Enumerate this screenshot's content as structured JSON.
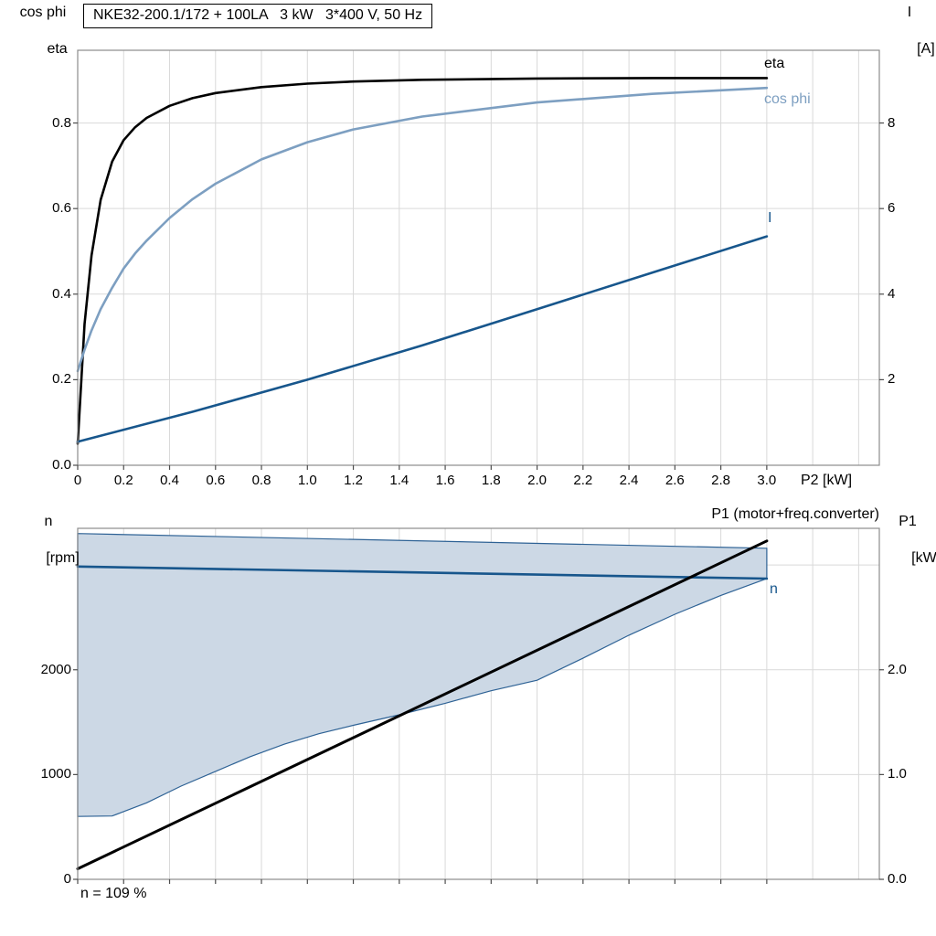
{
  "page": {
    "background": "#ffffff"
  },
  "colors": {
    "eta": "#000000",
    "cos_phi": "#7d9fc1",
    "current": "#17568c",
    "speed": "#17568c",
    "p1": "#000000",
    "area_fill": "#ccd8e5",
    "area_stroke": "#2e6295",
    "grid": "#d9d9d9",
    "frame": "#8c8c8c"
  },
  "top_chart": {
    "title": "NKE32-200.1/172 + 100LA   3 kW   3*400 V, 50 Hz",
    "left_axis": {
      "line1": "cos phi",
      "line2": "eta",
      "ticks": [
        "0.0",
        "0.2",
        "0.4",
        "0.6",
        "0.8"
      ]
    },
    "right_axis": {
      "line1": "I",
      "line2": "[A]",
      "ticks": [
        "2",
        "4",
        "6",
        "8"
      ]
    },
    "x_axis": {
      "ticks": [
        "0",
        "0.2",
        "0.4",
        "0.6",
        "0.8",
        "1.0",
        "1.2",
        "1.4",
        "1.6",
        "1.8",
        "2.0",
        "2.2",
        "2.4",
        "2.6",
        "2.8",
        "3.0"
      ],
      "label": "P2 [kW]"
    },
    "curve_labels": {
      "eta": "eta",
      "cos_phi": "cos phi",
      "current": "I"
    }
  },
  "bottom_chart": {
    "left_axis": {
      "line1": "n",
      "line2": "[rpm]",
      "ticks": [
        "0",
        "1000",
        "2000"
      ]
    },
    "right_axis": {
      "line1": "P1",
      "line2": "[kW]",
      "ticks": [
        "0.0",
        "1.0",
        "2.0"
      ]
    },
    "labels": {
      "p1": "P1 (motor+freq.converter)",
      "n": "n",
      "footer": "n = 109 %"
    }
  },
  "chart_data": [
    {
      "type": "line",
      "title": "NKE32-200.1/172 + 100LA   3 kW   3*400 V, 50 Hz",
      "xlabel": "P2 [kW]",
      "xlim": [
        0,
        3.49
      ],
      "ylim_left": [
        0,
        0.97
      ],
      "ylim_right": [
        0,
        9.7
      ],
      "xticks": [
        0,
        0.2,
        0.4,
        0.6,
        0.8,
        1.0,
        1.2,
        1.4,
        1.6,
        1.8,
        2.0,
        2.2,
        2.4,
        2.6,
        2.8,
        3.0
      ],
      "yticks_left": [
        0,
        0.2,
        0.4,
        0.6,
        0.8
      ],
      "yticks_right": [
        2,
        4,
        6,
        8
      ],
      "series": [
        {
          "name": "eta",
          "axis": "left",
          "color": "#000000",
          "width": 2.6,
          "x": [
            0,
            0.03,
            0.06,
            0.1,
            0.15,
            0.2,
            0.25,
            0.3,
            0.4,
            0.5,
            0.6,
            0.8,
            1.0,
            1.2,
            1.5,
            2.0,
            2.5,
            3.0
          ],
          "y": [
            0.05,
            0.33,
            0.49,
            0.62,
            0.71,
            0.76,
            0.79,
            0.812,
            0.84,
            0.858,
            0.87,
            0.884,
            0.892,
            0.897,
            0.901,
            0.904,
            0.905,
            0.905
          ]
        },
        {
          "name": "cos phi",
          "axis": "left",
          "color": "#7d9fc1",
          "width": 2.6,
          "x": [
            0,
            0.03,
            0.06,
            0.1,
            0.15,
            0.2,
            0.25,
            0.3,
            0.4,
            0.5,
            0.6,
            0.8,
            1.0,
            1.2,
            1.5,
            2.0,
            2.5,
            3.0
          ],
          "y": [
            0.22,
            0.27,
            0.315,
            0.365,
            0.415,
            0.46,
            0.495,
            0.525,
            0.578,
            0.622,
            0.658,
            0.715,
            0.755,
            0.785,
            0.815,
            0.848,
            0.868,
            0.882
          ]
        },
        {
          "name": "I",
          "axis": "right",
          "color": "#17568c",
          "width": 2.6,
          "x": [
            0,
            0.5,
            1.0,
            1.5,
            2.0,
            2.5,
            3.0
          ],
          "y": [
            0.55,
            1.25,
            2.0,
            2.8,
            3.65,
            4.5,
            5.35
          ]
        }
      ]
    },
    {
      "type": "line+area",
      "xlim": [
        0,
        3.49
      ],
      "ylim_left": [
        0,
        3350
      ],
      "ylim_right": [
        0,
        3.35
      ],
      "xticks": [
        0,
        0.2,
        0.4,
        0.6,
        0.8,
        1.0,
        1.2,
        1.4,
        1.6,
        1.8,
        2.0,
        2.2,
        2.4,
        2.6,
        2.8,
        3.0
      ],
      "yticks_left": [
        0,
        1000,
        2000
      ],
      "yticks_right": [
        0,
        1,
        2
      ],
      "area": {
        "name": "speed-control-range",
        "fill": "#ccd8e5",
        "stroke": "#2e6295",
        "x": [
          0,
          0.15,
          0.3,
          0.45,
          0.6,
          0.75,
          0.9,
          1.05,
          1.2,
          1.4,
          1.6,
          1.8,
          2.0,
          2.2,
          2.4,
          2.6,
          2.8,
          3.0
        ],
        "lower": [
          600,
          605,
          730,
          890,
          1030,
          1170,
          1290,
          1390,
          1470,
          1570,
          1680,
          1800,
          1900,
          2110,
          2330,
          2530,
          2710,
          2870
        ],
        "upper_x": [
          0,
          3.0
        ],
        "upper": [
          3300,
          3160
        ]
      },
      "series": [
        {
          "name": "n",
          "axis": "left",
          "color": "#17568c",
          "width": 2.6,
          "x": [
            0,
            3.0
          ],
          "y": [
            2985,
            2870
          ]
        },
        {
          "name": "P1 (motor+freq.converter)",
          "axis": "right",
          "color": "#000000",
          "width": 3,
          "x": [
            0,
            3.0
          ],
          "y": [
            0.1,
            3.23
          ]
        }
      ],
      "note": "n = 109 %"
    }
  ]
}
